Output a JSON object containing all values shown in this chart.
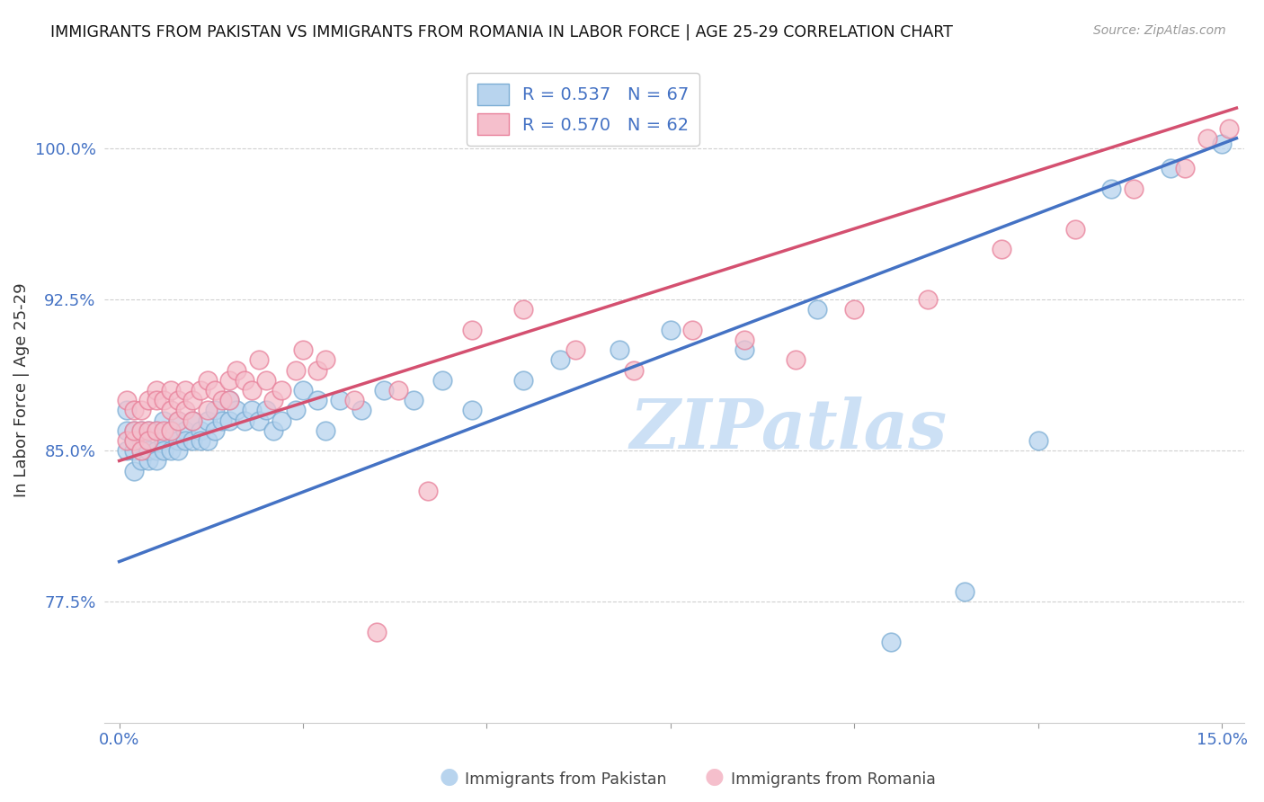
{
  "title": "IMMIGRANTS FROM PAKISTAN VS IMMIGRANTS FROM ROMANIA IN LABOR FORCE | AGE 25-29 CORRELATION CHART",
  "source": "Source: ZipAtlas.com",
  "ylabel": "In Labor Force | Age 25-29",
  "xlim": [
    -0.002,
    0.153
  ],
  "ylim": [
    0.715,
    1.045
  ],
  "yticks": [
    0.775,
    0.85,
    0.925,
    1.0
  ],
  "ytick_labels": [
    "77.5%",
    "85.0%",
    "92.5%",
    "100.0%"
  ],
  "xticks": [
    0.0,
    0.025,
    0.05,
    0.075,
    0.1,
    0.125,
    0.15
  ],
  "xtick_labels": [
    "0.0%",
    "",
    "",
    "",
    "",
    "",
    "15.0%"
  ],
  "pakistan_color": "#b8d4ee",
  "pakistan_edge_color": "#7badd4",
  "romania_color": "#f5bfcc",
  "romania_edge_color": "#e8809a",
  "pakistan_line_color": "#4472c4",
  "romania_line_color": "#d45070",
  "pakistan_R": 0.537,
  "pakistan_N": 67,
  "romania_R": 0.57,
  "romania_N": 62,
  "legend_label_pakistan": "Immigrants from Pakistan",
  "legend_label_romania": "Immigrants from Romania",
  "watermark": "ZIPatlas",
  "watermark_color": "#cce0f5",
  "pak_line_x0": 0.0,
  "pak_line_y0": 0.795,
  "pak_line_x1": 0.152,
  "pak_line_y1": 1.005,
  "rom_line_x0": 0.0,
  "rom_line_y0": 0.845,
  "rom_line_x1": 0.152,
  "rom_line_y1": 1.02,
  "pakistan_x": [
    0.001,
    0.001,
    0.001,
    0.002,
    0.002,
    0.002,
    0.002,
    0.003,
    0.003,
    0.003,
    0.003,
    0.004,
    0.004,
    0.004,
    0.005,
    0.005,
    0.005,
    0.006,
    0.006,
    0.006,
    0.007,
    0.007,
    0.008,
    0.008,
    0.008,
    0.009,
    0.009,
    0.01,
    0.01,
    0.011,
    0.011,
    0.012,
    0.012,
    0.013,
    0.013,
    0.014,
    0.015,
    0.015,
    0.016,
    0.017,
    0.018,
    0.019,
    0.02,
    0.021,
    0.022,
    0.024,
    0.025,
    0.027,
    0.028,
    0.03,
    0.033,
    0.036,
    0.04,
    0.044,
    0.048,
    0.055,
    0.06,
    0.068,
    0.075,
    0.085,
    0.095,
    0.105,
    0.115,
    0.125,
    0.135,
    0.143,
    0.15
  ],
  "pakistan_y": [
    0.85,
    0.87,
    0.86,
    0.85,
    0.86,
    0.84,
    0.855,
    0.85,
    0.845,
    0.86,
    0.855,
    0.86,
    0.845,
    0.85,
    0.86,
    0.85,
    0.845,
    0.855,
    0.865,
    0.85,
    0.86,
    0.85,
    0.865,
    0.855,
    0.85,
    0.86,
    0.855,
    0.865,
    0.855,
    0.86,
    0.855,
    0.865,
    0.855,
    0.87,
    0.86,
    0.865,
    0.875,
    0.865,
    0.87,
    0.865,
    0.87,
    0.865,
    0.87,
    0.86,
    0.865,
    0.87,
    0.88,
    0.875,
    0.86,
    0.875,
    0.87,
    0.88,
    0.875,
    0.885,
    0.87,
    0.885,
    0.895,
    0.9,
    0.91,
    0.9,
    0.92,
    0.755,
    0.78,
    0.855,
    0.98,
    0.99,
    1.002
  ],
  "romania_x": [
    0.001,
    0.001,
    0.002,
    0.002,
    0.002,
    0.003,
    0.003,
    0.003,
    0.004,
    0.004,
    0.004,
    0.005,
    0.005,
    0.005,
    0.006,
    0.006,
    0.007,
    0.007,
    0.007,
    0.008,
    0.008,
    0.009,
    0.009,
    0.01,
    0.01,
    0.011,
    0.012,
    0.012,
    0.013,
    0.014,
    0.015,
    0.015,
    0.016,
    0.017,
    0.018,
    0.019,
    0.02,
    0.021,
    0.022,
    0.024,
    0.025,
    0.027,
    0.028,
    0.032,
    0.035,
    0.038,
    0.042,
    0.048,
    0.055,
    0.062,
    0.07,
    0.078,
    0.085,
    0.092,
    0.1,
    0.11,
    0.12,
    0.13,
    0.138,
    0.145,
    0.148,
    0.151
  ],
  "romania_y": [
    0.855,
    0.875,
    0.87,
    0.855,
    0.86,
    0.86,
    0.85,
    0.87,
    0.86,
    0.855,
    0.875,
    0.88,
    0.86,
    0.875,
    0.875,
    0.86,
    0.88,
    0.87,
    0.86,
    0.875,
    0.865,
    0.88,
    0.87,
    0.875,
    0.865,
    0.88,
    0.885,
    0.87,
    0.88,
    0.875,
    0.885,
    0.875,
    0.89,
    0.885,
    0.88,
    0.895,
    0.885,
    0.875,
    0.88,
    0.89,
    0.9,
    0.89,
    0.895,
    0.875,
    0.76,
    0.88,
    0.83,
    0.91,
    0.92,
    0.9,
    0.89,
    0.91,
    0.905,
    0.895,
    0.92,
    0.925,
    0.95,
    0.96,
    0.98,
    0.99,
    1.005,
    1.01
  ]
}
